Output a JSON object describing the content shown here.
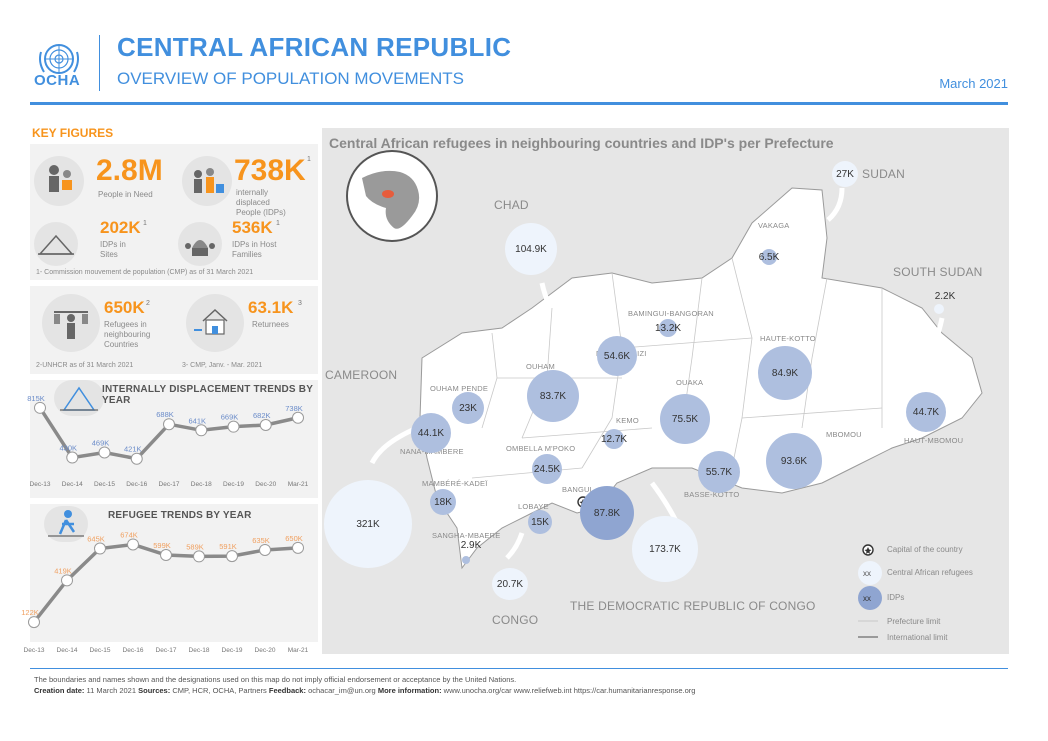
{
  "header": {
    "logo_text": "OCHA",
    "title": "CENTRAL AFRICAN REPUBLIC",
    "subtitle": "OVERVIEW OF POPULATION MOVEMENTS",
    "date": "March 2021"
  },
  "key_figures": {
    "title": "KEY FIGURES",
    "pin": {
      "value": "2.8M",
      "label": "People in Need"
    },
    "idps": {
      "value": "738K",
      "sup": "1",
      "label": "internally displaced People (IDPs)"
    },
    "sites": {
      "value": "202K",
      "sup": "1",
      "label": "IDPs in Sites"
    },
    "host": {
      "value": "536K",
      "sup": "1",
      "label": "IDPs in Host Families"
    },
    "note1": "1- Commission mouvement de population (CMP) as of 31 March 2021",
    "refugees": {
      "value": "650K",
      "sup": "2",
      "label": "Refugees in neighbouring Countries"
    },
    "returnees": {
      "value": "63.1K",
      "sup": "3",
      "label": "Returnees"
    },
    "note2": "2-UNHCR as of 31 March 2021",
    "note3": "3- CMP, Janv. - Mar. 2021"
  },
  "idp_trend": {
    "title": "INTERNALLY DISPLACEMENT TRENDS BY YEAR",
    "chart_data": {
      "type": "line",
      "title": "INTERNALLY DISPLACEMENT TRENDS BY YEAR",
      "categories": [
        "Dec-13",
        "Dec-14",
        "Dec-15",
        "Dec-16",
        "Dec-17",
        "Dec-18",
        "Dec-19",
        "Dec-20",
        "Mar-21"
      ],
      "values": [
        815,
        430,
        469,
        421,
        688,
        641,
        669,
        682,
        738
      ],
      "value_labels": [
        "815K",
        "430K",
        "469K",
        "421K",
        "688K",
        "641K",
        "669K",
        "682K",
        "738K"
      ],
      "ylim": [
        380,
        860
      ]
    }
  },
  "refugee_trend": {
    "title": "REFUGEE TRENDS BY YEAR",
    "chart_data": {
      "type": "line",
      "title": "REFUGEE TRENDS BY YEAR",
      "categories": [
        "Dec-13",
        "Dec-14",
        "Dec-15",
        "Dec-16",
        "Dec-17",
        "Dec-18",
        "Dec-19",
        "Dec-20",
        "Mar-21"
      ],
      "values": [
        122,
        419,
        645,
        674,
        599,
        589,
        591,
        635,
        650
      ],
      "value_labels": [
        "122K",
        "419K",
        "645K",
        "674K",
        "599K",
        "589K",
        "591K",
        "635K",
        "650K"
      ],
      "ylim": [
        80,
        720
      ]
    }
  },
  "map": {
    "title": "Central African refugees in neighbouring countries and IDP's per Prefecture",
    "countries": {
      "chad": "CHAD",
      "sudan": "SUDAN",
      "south_sudan": "SOUTH SUDAN",
      "cameroon": "CAMEROON",
      "drc": "THE DEMOCRATIC REPUBLIC OF CONGO",
      "congo": "CONGO"
    },
    "prefectures": {
      "vakaga": "VAKAGA",
      "bamingui": "BAMINGUI-BANGORAN",
      "haute_kotto": "HAUTE-KOTTO",
      "ouham_pende": "OUHAM PENDE",
      "ouham": "OUHAM",
      "nana_grebizi": "NANA-GRBIZI",
      "ouaka": "OUAKA",
      "haut_mbomou": "HAUT-MBOMOU",
      "mbomou": "MBOMOU",
      "kemo": "KEMO",
      "nana_mambere": "NANA-MAMBERE",
      "ombella": "OMBELLA M'POKO",
      "mambere_kadei": "MAMBÉRÉ-KADEÏ",
      "bangui": "BANGUI",
      "lobaye": "LOBAYE",
      "basse_kotto": "BASSE-KOTTO",
      "sangha": "SANGHA-MBAERE"
    },
    "idps": {
      "vakaga": "6.5K",
      "bamingui": "13.2K",
      "nana_grebizi": "54.6K",
      "haute_kotto": "84.9K",
      "ouham_pende": "23K",
      "ouham": "83.7K",
      "ouaka": "75.5K",
      "haut_mbomou": "44.7K",
      "nana_mambere": "44.1K",
      "kemo": "12.7K",
      "mbomou": "93.6K",
      "ombella": "24.5K",
      "basse_kotto": "55.7K",
      "mambere_kadei": "18K",
      "bangui": "87.8K",
      "lobaye": "15K",
      "sangha": "2.9K"
    },
    "refugees": {
      "sudan": "27K",
      "chad": "104.9K",
      "south_sudan": "2.2K",
      "cameroon": "321K",
      "drc": "173.7K",
      "congo": "20.7K"
    },
    "legend": {
      "capital": "Capital of the country",
      "refugees": "Central African refugees",
      "idps": "IDPs",
      "sample": "xx",
      "prefecture_limit": "Prefecture limit",
      "international_limit": "International limit"
    }
  },
  "footer": {
    "disclaimer": "The boundaries and names shown and the designations used on this map do not imply official endorsement or acceptance by the United Nations.",
    "creation_label": "Creation date:",
    "creation_value": "11 March 2021",
    "sources_label": "Sources:",
    "sources_value": "CMP, HCR, OCHA, Partners",
    "feedback_label": "Feedback:",
    "feedback_value": "ochacar_im@un.org",
    "info_label": "More information:",
    "info_value": "www.unocha.org/car www.reliefweb.int https://car.humanitarianresponse.org"
  },
  "colors": {
    "brand_blue": "#418fde",
    "orange": "#f7941d",
    "idp_bubble": "#aebfdf",
    "refugee_bubble": "#eef4fc"
  }
}
